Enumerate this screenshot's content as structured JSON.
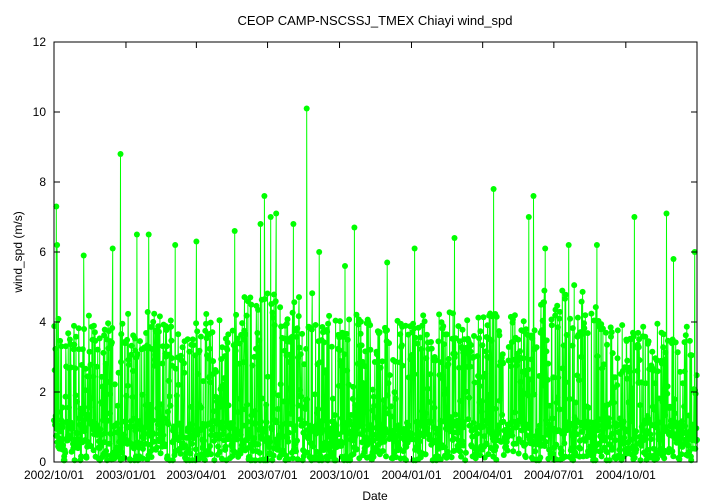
{
  "chart_data": {
    "type": "line",
    "title": "CEOP CAMP-NSCSSJ_TMEX Chiayi  wind_spd",
    "xlabel": "Date",
    "ylabel": "wind_spd (m/s)",
    "ylim": [
      0,
      12
    ],
    "yticks": [
      "0",
      "2",
      "4",
      "6",
      "8",
      "10",
      "12"
    ],
    "xlim": [
      "2002-10-01",
      "2004-12-31"
    ],
    "xticks": [
      "2002/10/01",
      "2003/01/01",
      "2003/04/01",
      "2003/07/01",
      "2003/10/01",
      "2004/01/01",
      "2004/04/01",
      "2004/07/01",
      "2004/10/01"
    ],
    "grid": false,
    "series": [
      {
        "color": "#00ff00",
        "marker": "circle",
        "peaks": [
          {
            "x": "2002-10-04",
            "y": 7.3
          },
          {
            "x": "2002-10-05",
            "y": 6.2
          },
          {
            "x": "2002-11-08",
            "y": 5.9
          },
          {
            "x": "2002-12-15",
            "y": 6.1
          },
          {
            "x": "2002-12-25",
            "y": 8.8
          },
          {
            "x": "2003-01-15",
            "y": 6.5
          },
          {
            "x": "2003-01-30",
            "y": 6.5
          },
          {
            "x": "2003-03-05",
            "y": 6.2
          },
          {
            "x": "2003-04-01",
            "y": 6.3
          },
          {
            "x": "2003-05-20",
            "y": 6.6
          },
          {
            "x": "2003-06-22",
            "y": 6.8
          },
          {
            "x": "2003-06-27",
            "y": 7.6
          },
          {
            "x": "2003-07-05",
            "y": 7.0
          },
          {
            "x": "2003-07-12",
            "y": 7.1
          },
          {
            "x": "2003-08-03",
            "y": 6.8
          },
          {
            "x": "2003-08-20",
            "y": 10.1
          },
          {
            "x": "2003-09-05",
            "y": 6.0
          },
          {
            "x": "2003-10-08",
            "y": 5.6
          },
          {
            "x": "2003-10-20",
            "y": 6.7
          },
          {
            "x": "2003-12-01",
            "y": 5.7
          },
          {
            "x": "2004-01-05",
            "y": 6.1
          },
          {
            "x": "2004-02-25",
            "y": 6.4
          },
          {
            "x": "2004-04-15",
            "y": 7.8
          },
          {
            "x": "2004-05-30",
            "y": 7.0
          },
          {
            "x": "2004-06-05",
            "y": 7.6
          },
          {
            "x": "2004-06-20",
            "y": 6.1
          },
          {
            "x": "2004-07-20",
            "y": 6.2
          },
          {
            "x": "2004-08-25",
            "y": 6.2
          },
          {
            "x": "2004-10-12",
            "y": 7.0
          },
          {
            "x": "2004-11-22",
            "y": 7.1
          },
          {
            "x": "2004-12-01",
            "y": 5.8
          },
          {
            "x": "2004-12-28",
            "y": 6.0
          }
        ]
      }
    ]
  }
}
